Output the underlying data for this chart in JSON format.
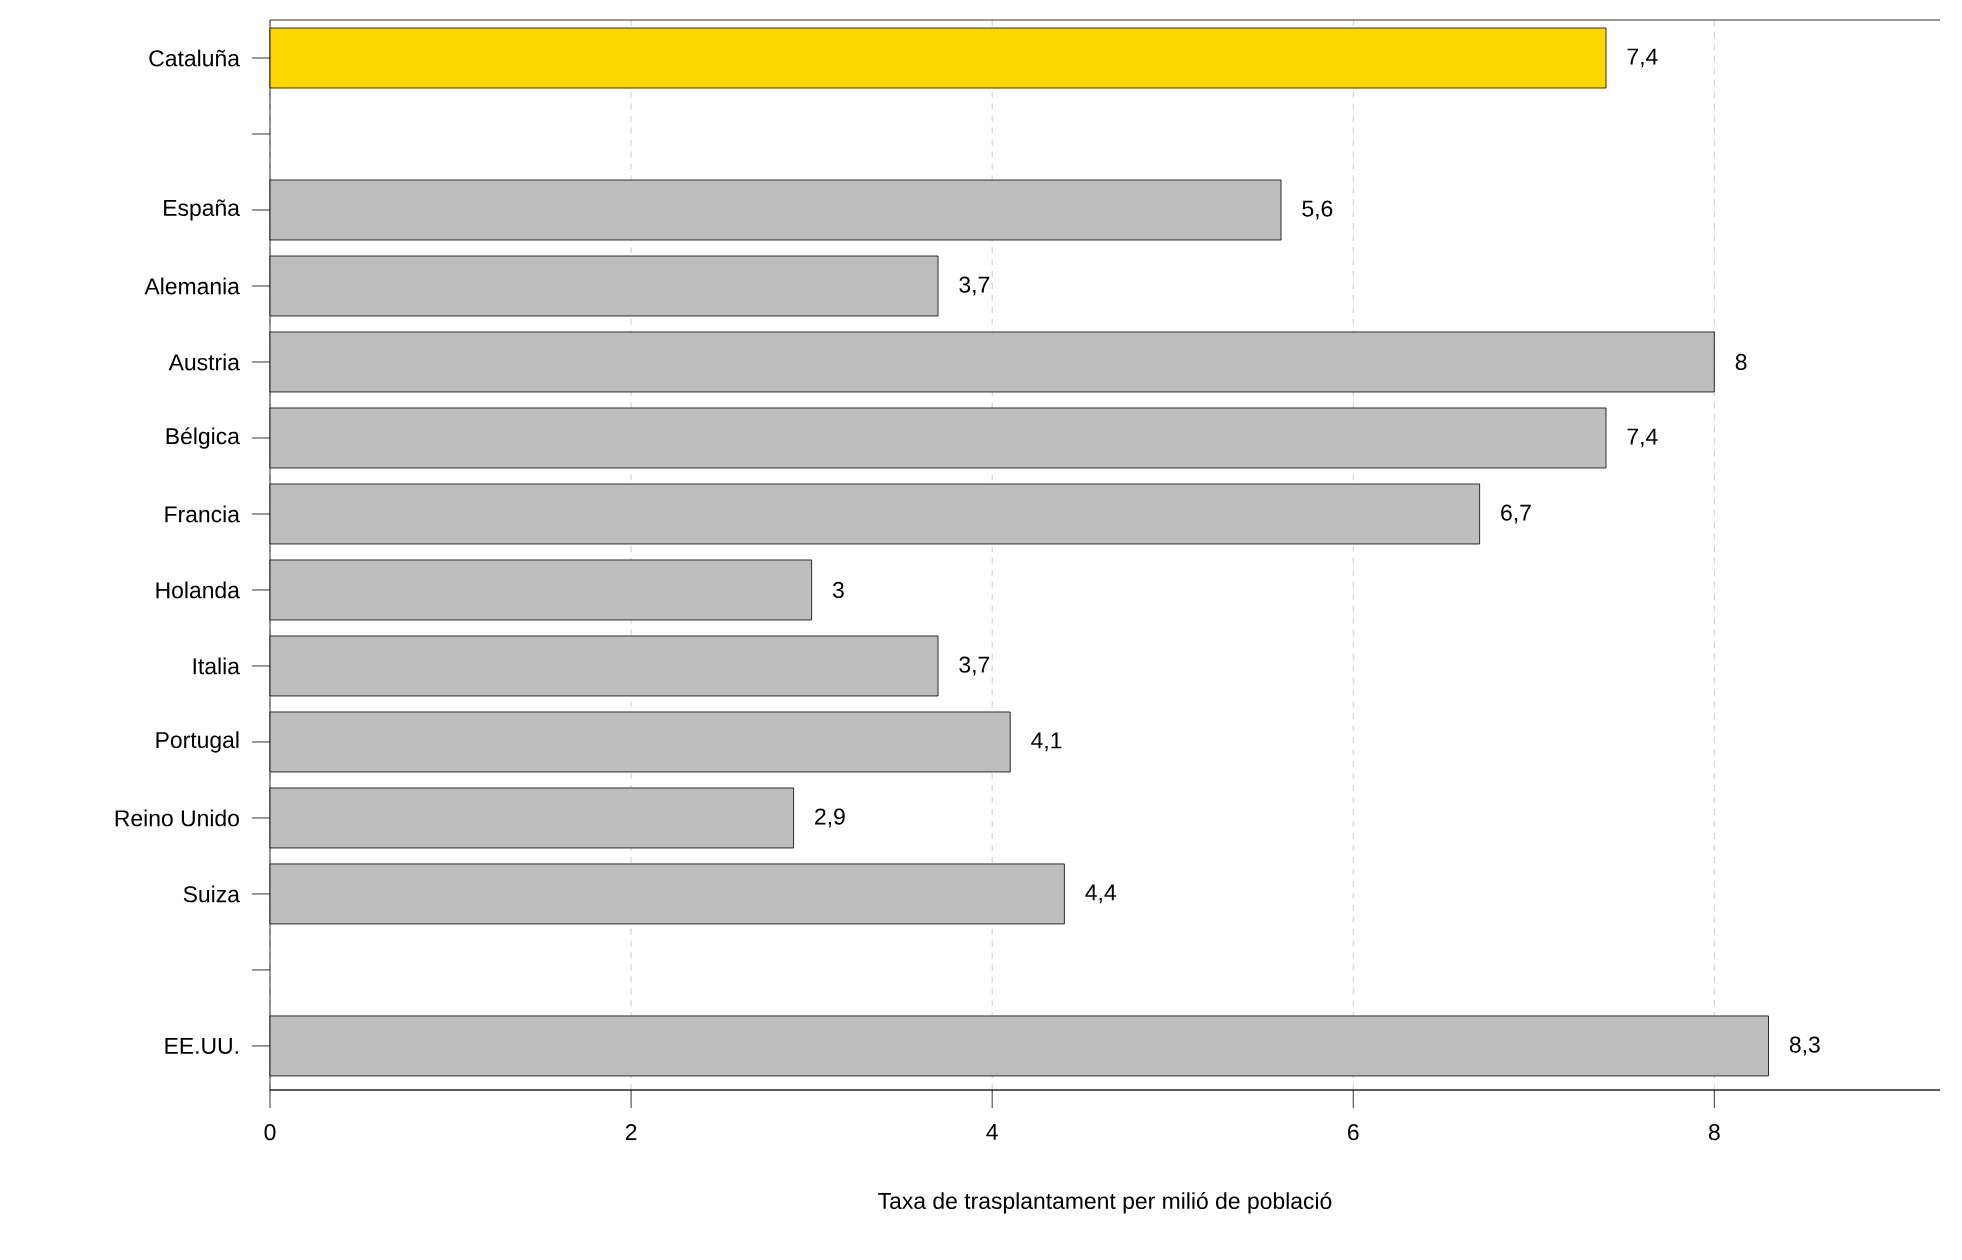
{
  "chart_data": {
    "type": "bar",
    "orientation": "horizontal",
    "xlabel": "Taxa de trasplantament per milió de població",
    "categories": [
      "Cataluña",
      null,
      "España",
      "Alemania",
      "Austria",
      "Bélgica",
      "Francia",
      "Holanda",
      "Italia",
      "Portugal",
      "Reino Unido",
      "Suiza",
      null,
      "EE.UU."
    ],
    "values": [
      7.4,
      null,
      5.6,
      3.7,
      8,
      7.4,
      6.7,
      3,
      3.7,
      4.1,
      2.9,
      4.4,
      null,
      8.3
    ],
    "colors": [
      "#ffd700",
      null,
      "#bebebe",
      "#bebebe",
      "#bebebe",
      "#bebebe",
      "#bebebe",
      "#bebebe",
      "#bebebe",
      "#bebebe",
      "#bebebe",
      "#bebebe",
      null,
      "#bebebe"
    ],
    "value_labels": [
      "7,4",
      null,
      "5,6",
      "3,7",
      "8",
      "7,4",
      "6,7",
      "3",
      "3,7",
      "4,1",
      "2,9",
      "4,4",
      null,
      "8,3"
    ],
    "xlim": [
      0,
      9.25
    ],
    "xticks": [
      0,
      2,
      4,
      6,
      8
    ],
    "grid": "x"
  }
}
